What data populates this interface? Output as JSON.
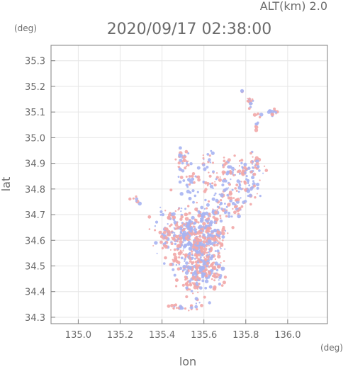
{
  "chart_data": {
    "type": "scatter",
    "header_right": "ALT(km) 2.0",
    "title": "2020/09/17 02:38:00",
    "xlabel": "lon",
    "ylabel": "lat",
    "x_unit": "(deg)",
    "y_unit": "(deg)",
    "xlim": [
      134.87,
      136.19
    ],
    "ylim": [
      34.275,
      35.36
    ],
    "xticks": [
      "135.0",
      "135.2",
      "135.4",
      "135.6",
      "135.8",
      "136.0"
    ],
    "yticks": [
      "34.3",
      "34.4",
      "34.5",
      "34.6",
      "34.7",
      "34.8",
      "34.9",
      "35.0",
      "35.1",
      "35.2",
      "35.3"
    ],
    "grid": true,
    "colors": {
      "positive": "#f2a7a7",
      "negative": "#a7b4f2",
      "axis": "#808080",
      "grid": "#e6e6e6"
    },
    "clusters": [
      {
        "lon": 135.82,
        "lat": 35.14,
        "slon": 0.01,
        "slat": 0.01,
        "n": 14
      },
      {
        "lon": 135.93,
        "lat": 35.1,
        "slon": 0.01,
        "slat": 0.008,
        "n": 14
      },
      {
        "lon": 135.86,
        "lat": 35.09,
        "slon": 0.01,
        "slat": 0.005,
        "n": 5
      },
      {
        "lon": 135.85,
        "lat": 35.05,
        "slon": 0.005,
        "slat": 0.01,
        "n": 6
      },
      {
        "lon": 135.78,
        "lat": 35.18,
        "slon": 0.003,
        "slat": 0.003,
        "n": 2
      },
      {
        "lon": 135.5,
        "lat": 34.91,
        "slon": 0.02,
        "slat": 0.02,
        "n": 30
      },
      {
        "lon": 135.62,
        "lat": 34.91,
        "slon": 0.015,
        "slat": 0.02,
        "n": 14
      },
      {
        "lon": 135.53,
        "lat": 34.83,
        "slon": 0.04,
        "slat": 0.04,
        "n": 35
      },
      {
        "lon": 135.64,
        "lat": 34.83,
        "slon": 0.02,
        "slat": 0.04,
        "n": 22
      },
      {
        "lon": 135.72,
        "lat": 34.86,
        "slon": 0.03,
        "slat": 0.03,
        "n": 40
      },
      {
        "lon": 135.78,
        "lat": 34.8,
        "slon": 0.03,
        "slat": 0.03,
        "n": 45
      },
      {
        "lon": 135.8,
        "lat": 34.88,
        "slon": 0.03,
        "slat": 0.02,
        "n": 35
      },
      {
        "lon": 135.84,
        "lat": 34.85,
        "slon": 0.02,
        "slat": 0.05,
        "n": 30
      },
      {
        "lon": 135.69,
        "lat": 34.76,
        "slon": 0.03,
        "slat": 0.03,
        "n": 40
      },
      {
        "lon": 135.75,
        "lat": 34.73,
        "slon": 0.02,
        "slat": 0.02,
        "n": 20
      },
      {
        "lon": 135.27,
        "lat": 34.76,
        "slon": 0.01,
        "slat": 0.01,
        "n": 8
      },
      {
        "lon": 135.55,
        "lat": 34.62,
        "slon": 0.07,
        "slat": 0.06,
        "n": 320
      },
      {
        "lon": 135.58,
        "lat": 34.5,
        "slon": 0.045,
        "slat": 0.06,
        "n": 240
      },
      {
        "lon": 135.46,
        "lat": 34.64,
        "slon": 0.04,
        "slat": 0.04,
        "n": 90
      },
      {
        "lon": 135.64,
        "lat": 34.64,
        "slon": 0.03,
        "slat": 0.04,
        "n": 70
      },
      {
        "lon": 135.55,
        "lat": 34.43,
        "slon": 0.02,
        "slat": 0.015,
        "n": 24
      },
      {
        "lon": 135.66,
        "lat": 34.48,
        "slon": 0.02,
        "slat": 0.03,
        "n": 30
      },
      {
        "lon": 135.46,
        "lat": 34.34,
        "slon": 0.04,
        "slat": 0.006,
        "n": 16
      },
      {
        "lon": 135.55,
        "lat": 34.34,
        "slon": 0.02,
        "slat": 0.008,
        "n": 10
      },
      {
        "lon": 135.41,
        "lat": 34.58,
        "slon": 0.01,
        "slat": 0.01,
        "n": 6
      }
    ]
  }
}
